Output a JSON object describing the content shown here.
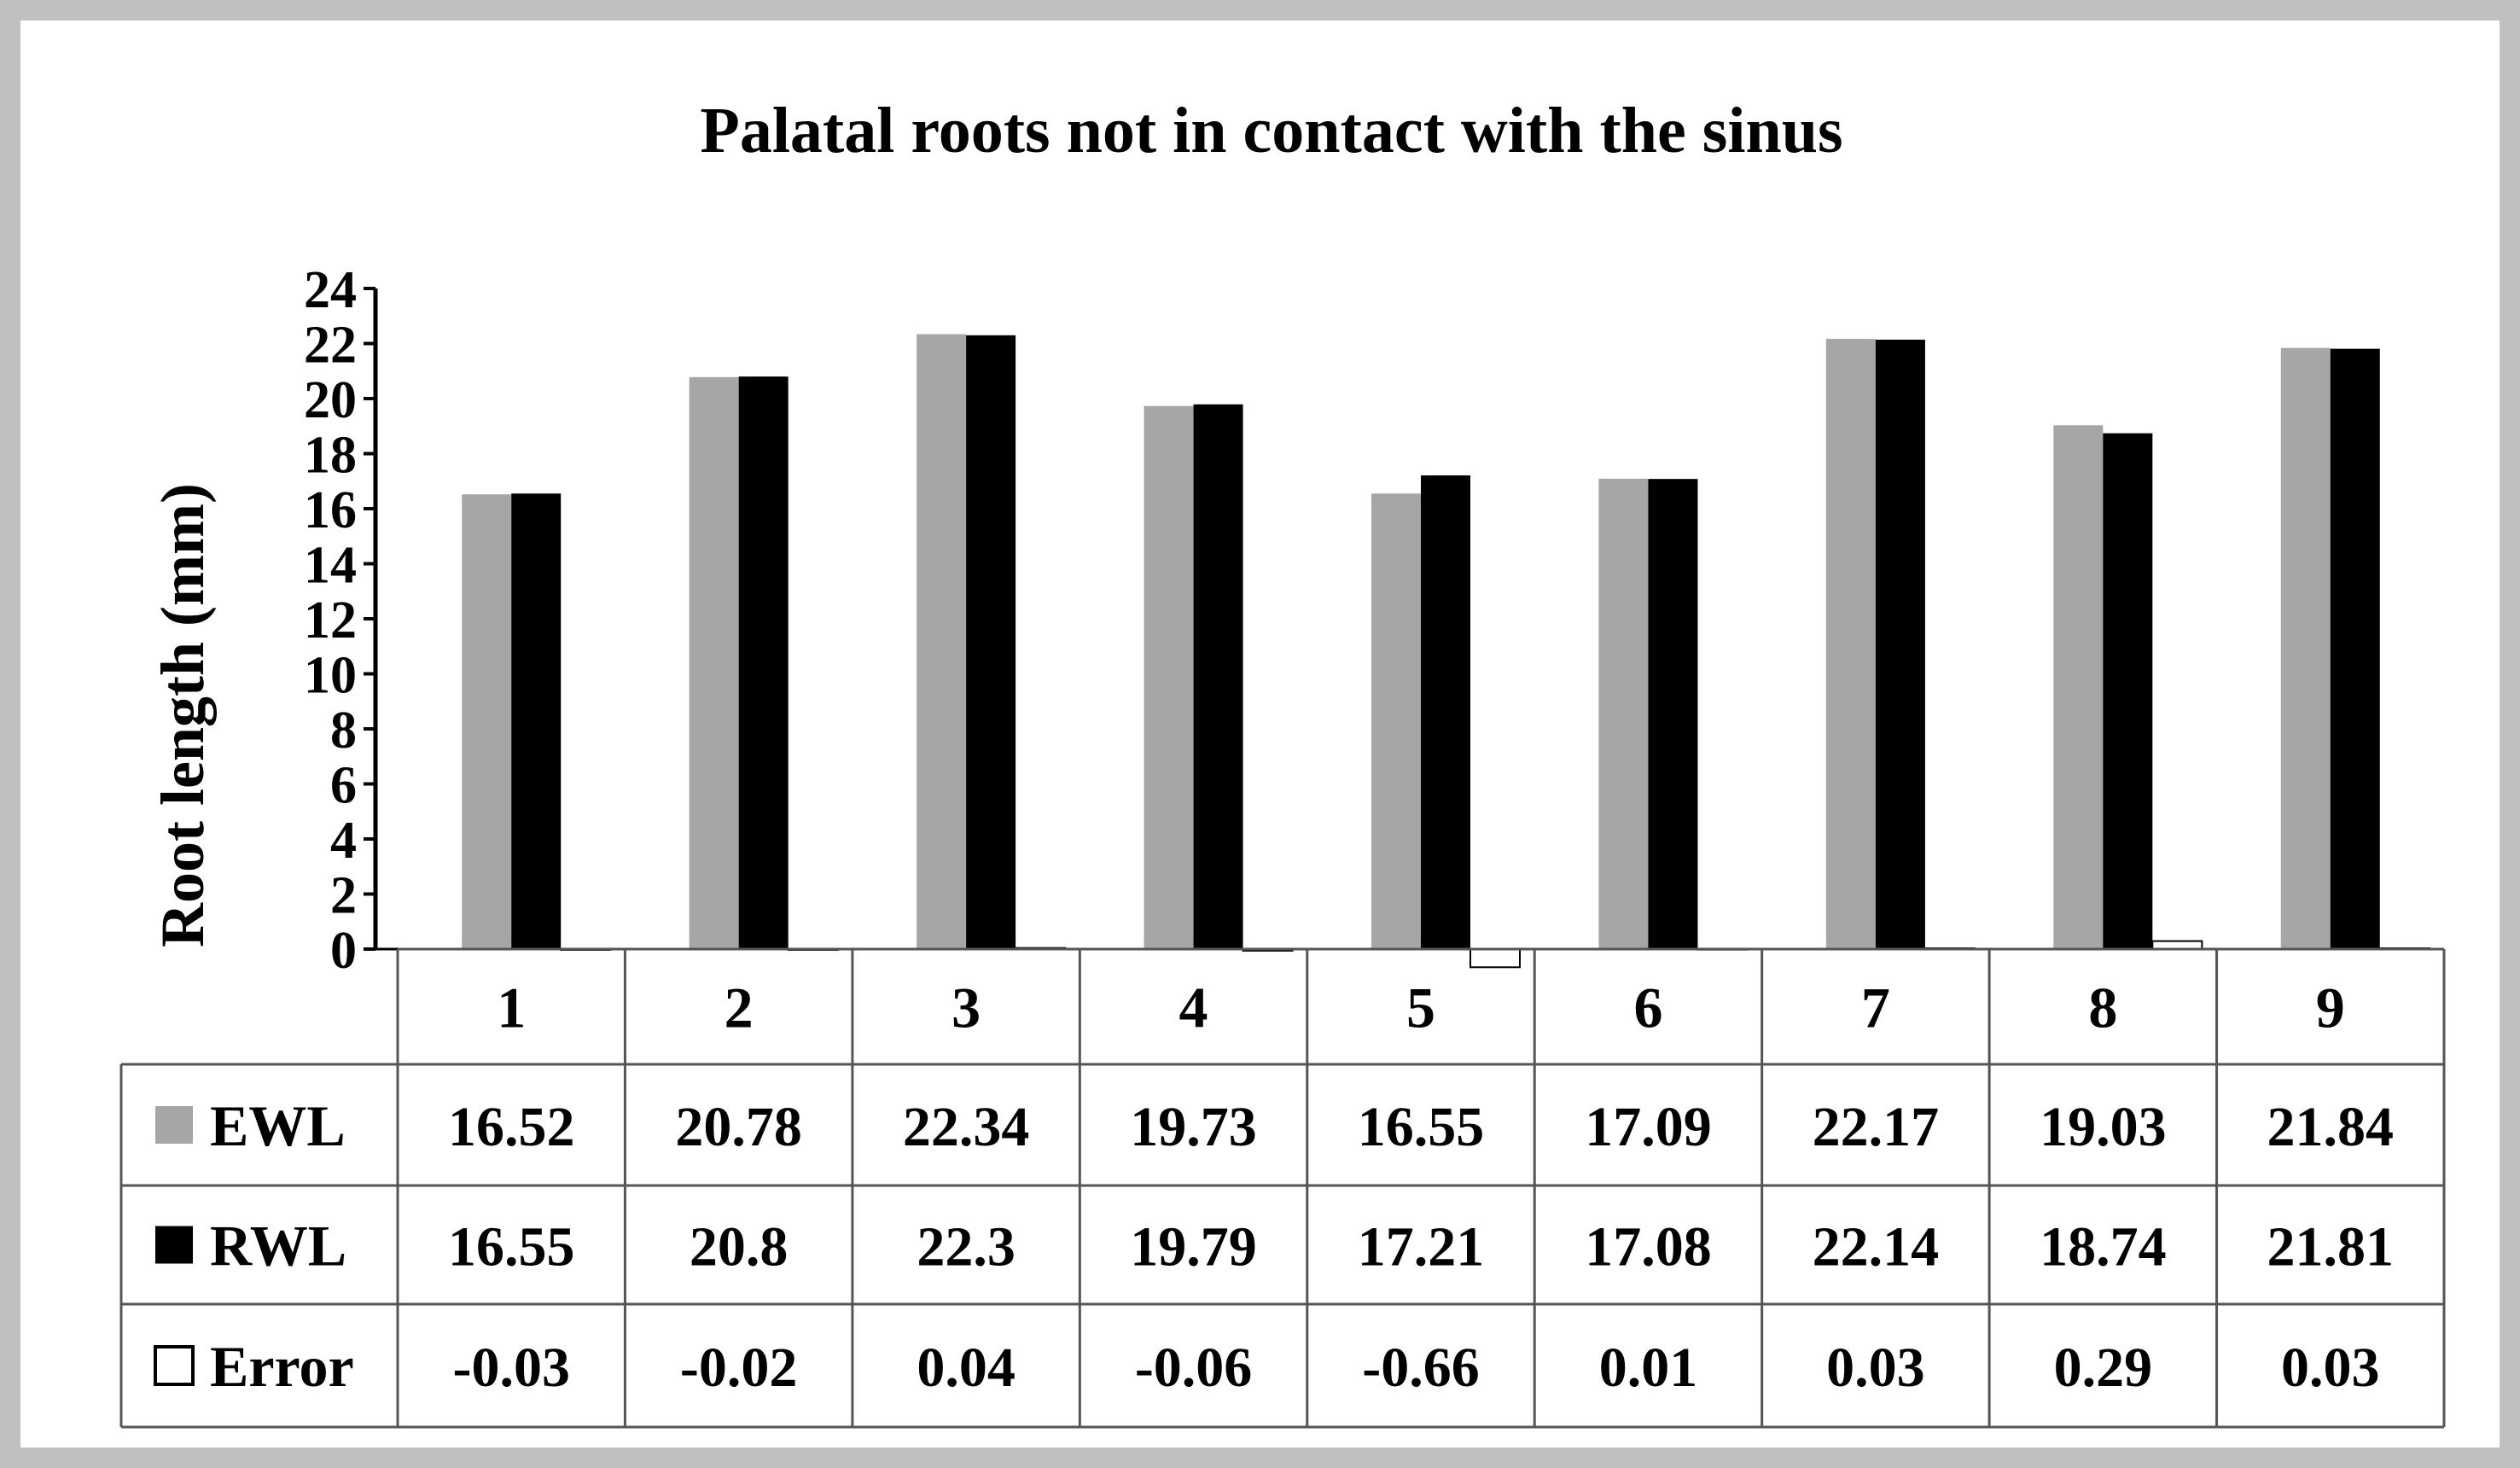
{
  "chart_data": {
    "type": "bar",
    "title": "Palatal roots not in contact with the sinus",
    "xlabel": "",
    "ylabel": "Root length (mm)",
    "ylim": [
      0,
      24
    ],
    "yticks": [
      0,
      2,
      4,
      6,
      8,
      10,
      12,
      14,
      16,
      18,
      20,
      22,
      24
    ],
    "categories": [
      "1",
      "2",
      "3",
      "4",
      "5",
      "6",
      "7",
      "8",
      "9"
    ],
    "series": [
      {
        "name": "EWL",
        "color": "#a6a6a6",
        "values": [
          16.52,
          20.78,
          22.34,
          19.73,
          16.55,
          17.09,
          22.17,
          19.03,
          21.84
        ]
      },
      {
        "name": "RWL",
        "color": "#000000",
        "values": [
          16.55,
          20.8,
          22.3,
          19.79,
          17.21,
          17.08,
          22.14,
          18.74,
          21.81
        ]
      },
      {
        "name": "Error",
        "color": "#ffffff",
        "values": [
          -0.03,
          -0.02,
          0.04,
          -0.06,
          -0.66,
          0.01,
          0.03,
          0.29,
          0.03
        ]
      }
    ],
    "table_labels": {
      "EWL": [
        "16.52",
        "20.78",
        "22.34",
        "19.73",
        "16.55",
        "17.09",
        "22.17",
        "19.03",
        "21.84"
      ],
      "RWL": [
        "16.55",
        "20.8",
        "22.3",
        "19.79",
        "17.21",
        "17.08",
        "22.14",
        "18.74",
        "21.81"
      ],
      "Error": [
        "-0.03",
        "-0.02",
        "0.04",
        "-0.06",
        "-0.66",
        "0.01",
        "0.03",
        "0.29",
        "0.03"
      ]
    },
    "legend": "data-table-left",
    "grid": false
  }
}
